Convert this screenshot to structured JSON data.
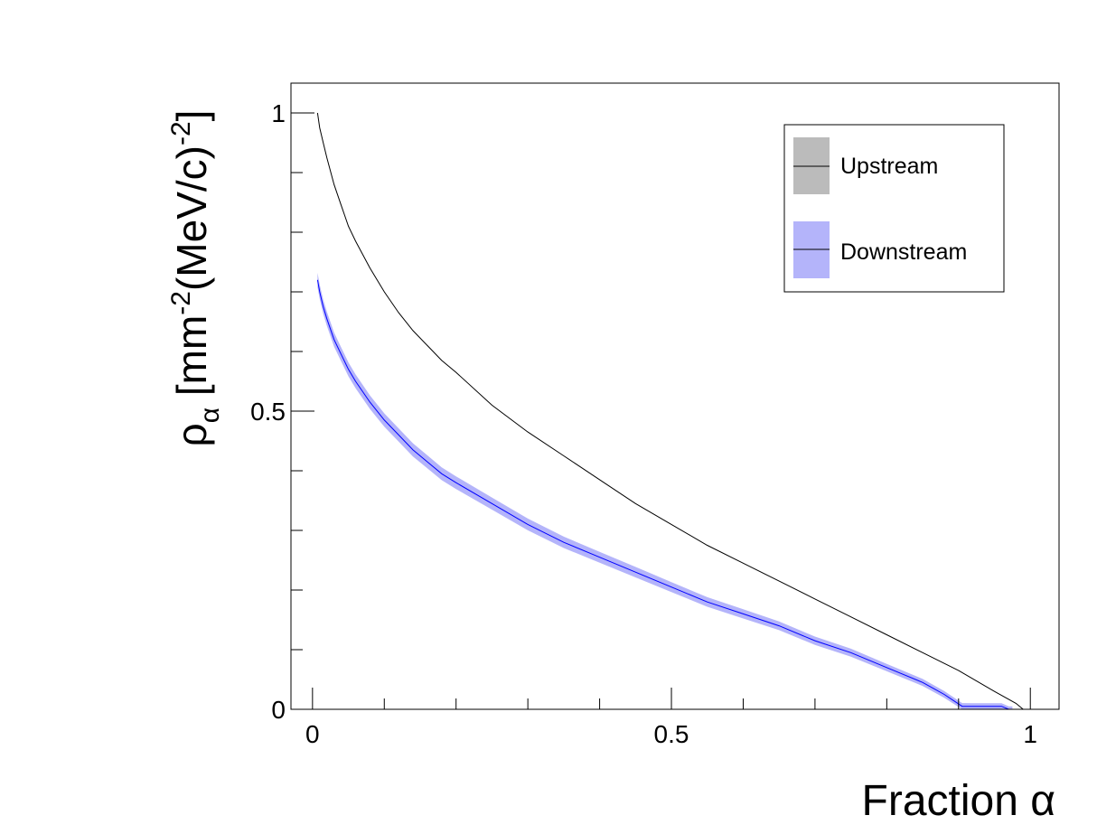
{
  "chart_data": {
    "type": "line",
    "title": "",
    "xlabel": "Fraction α",
    "ylabel": {
      "main": "ρ",
      "sub": "α",
      "unit_open": " [mm",
      "unit_exp1": "-2",
      "unit_mid": "(MeV/c)",
      "unit_exp2": "-2",
      "unit_close": "]"
    },
    "xlim": [
      -0.03,
      1.04
    ],
    "ylim": [
      0,
      1.05
    ],
    "xticks": [
      {
        "value": 0,
        "label": "0"
      },
      {
        "value": 0.5,
        "label": "0.5"
      },
      {
        "value": 1,
        "label": "1"
      }
    ],
    "yticks": [
      {
        "value": 0,
        "label": "0"
      },
      {
        "value": 0.5,
        "label": "0.5"
      },
      {
        "value": 1,
        "label": "1"
      }
    ],
    "grid": false,
    "legend_position": "top-right",
    "series": [
      {
        "name": "Upstream",
        "line_color": "#000000",
        "band_color": "#bbbbbb",
        "x": [
          0.007,
          0.01,
          0.015,
          0.02,
          0.03,
          0.04,
          0.05,
          0.06,
          0.08,
          0.1,
          0.12,
          0.14,
          0.16,
          0.18,
          0.2,
          0.25,
          0.3,
          0.35,
          0.4,
          0.45,
          0.5,
          0.55,
          0.6,
          0.65,
          0.7,
          0.75,
          0.8,
          0.85,
          0.9,
          0.95,
          0.98,
          0.99
        ],
        "y": [
          1.0,
          0.975,
          0.95,
          0.925,
          0.88,
          0.845,
          0.81,
          0.785,
          0.74,
          0.7,
          0.665,
          0.635,
          0.61,
          0.585,
          0.565,
          0.51,
          0.465,
          0.425,
          0.385,
          0.345,
          0.31,
          0.275,
          0.245,
          0.215,
          0.185,
          0.155,
          0.125,
          0.095,
          0.065,
          0.03,
          0.01,
          0.0
        ],
        "band_halfwidth": 0.0
      },
      {
        "name": "Downstream",
        "line_color": "#0000ff",
        "band_color": "#b4b4fa",
        "x": [
          0.007,
          0.01,
          0.015,
          0.02,
          0.03,
          0.04,
          0.05,
          0.06,
          0.08,
          0.1,
          0.12,
          0.14,
          0.16,
          0.18,
          0.2,
          0.25,
          0.3,
          0.35,
          0.4,
          0.45,
          0.5,
          0.55,
          0.6,
          0.65,
          0.7,
          0.75,
          0.8,
          0.85,
          0.88,
          0.905,
          0.92,
          0.96,
          0.97,
          0.975
        ],
        "y": [
          0.72,
          0.7,
          0.675,
          0.655,
          0.62,
          0.595,
          0.57,
          0.55,
          0.515,
          0.485,
          0.46,
          0.435,
          0.415,
          0.395,
          0.38,
          0.345,
          0.31,
          0.28,
          0.255,
          0.23,
          0.205,
          0.18,
          0.16,
          0.14,
          0.115,
          0.095,
          0.07,
          0.045,
          0.025,
          0.005,
          0.005,
          0.005,
          0.0,
          0.0
        ],
        "band_halfwidth": 0.012
      }
    ]
  }
}
